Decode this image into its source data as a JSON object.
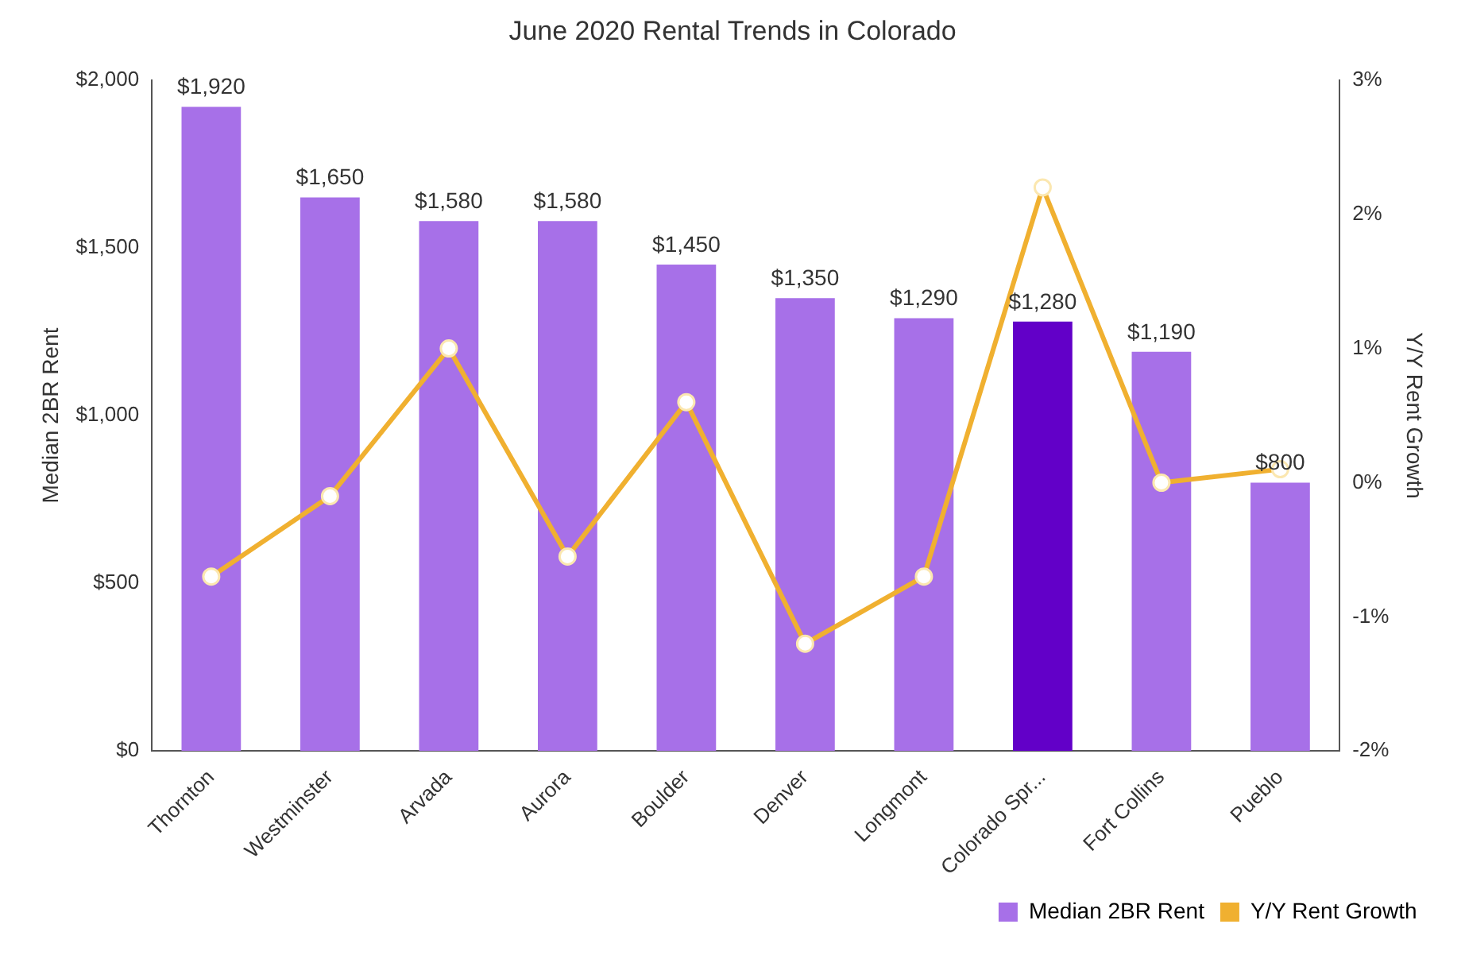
{
  "chart_data": {
    "type": "bar",
    "title": "June 2020 Rental Trends in Colorado",
    "categories": [
      "Thornton",
      "Westminster",
      "Arvada",
      "Aurora",
      "Boulder",
      "Denver",
      "Longmont",
      "Colorado Spr...",
      "Fort Collins",
      "Pueblo"
    ],
    "ylabel": "Median 2BR Rent",
    "y2label": "Y/Y Rent Growth",
    "series": [
      {
        "name": "Median 2BR Rent",
        "color": "#a770e8",
        "colors": [
          "#a770e8",
          "#a770e8",
          "#a770e8",
          "#a770e8",
          "#a770e8",
          "#a770e8",
          "#a770e8",
          "#6200c8",
          "#a770e8",
          "#a770e8"
        ],
        "values": [
          1920,
          1650,
          1580,
          1580,
          1450,
          1350,
          1290,
          1280,
          1190,
          800
        ],
        "value_labels": [
          "$1,920",
          "$1,650",
          "$1,580",
          "$1,580",
          "$1,450",
          "$1,350",
          "$1,290",
          "$1,280",
          "$1,190",
          "$800"
        ]
      },
      {
        "name": "Y/Y Rent Growth",
        "type": "line",
        "axis": "y2",
        "color": "#f0b030",
        "values": [
          -0.7,
          -0.1,
          1.0,
          -0.55,
          0.6,
          -1.2,
          -0.7,
          2.2,
          0.0,
          0.1
        ]
      }
    ],
    "ylim": [
      0,
      2000
    ],
    "yticks": [
      {
        "value": 0,
        "label": "$0"
      },
      {
        "value": 500,
        "label": "$500"
      },
      {
        "value": 1000,
        "label": "$1,000"
      },
      {
        "value": 1500,
        "label": "$1,500"
      },
      {
        "value": 2000,
        "label": "$2,000"
      }
    ],
    "y2lim": [
      -2,
      3
    ],
    "y2ticks": [
      {
        "value": -2,
        "label": "-2%"
      },
      {
        "value": -1,
        "label": "-1%"
      },
      {
        "value": 0,
        "label": "0%"
      },
      {
        "value": 1,
        "label": "1%"
      },
      {
        "value": 2,
        "label": "2%"
      },
      {
        "value": 3,
        "label": "3%"
      }
    ],
    "grid": false,
    "legend": "bottom right",
    "marker": "circle",
    "line_style": "solid"
  }
}
